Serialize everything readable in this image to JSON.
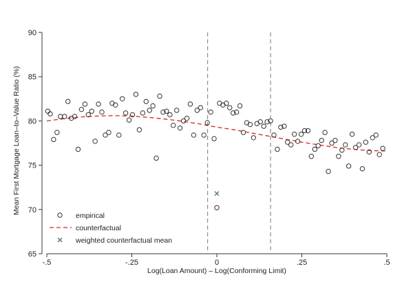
{
  "chart_data": {
    "type": "scatter",
    "title": "",
    "xlabel": "Log(Loan Amount) – Log(Conforming Limit)",
    "ylabel": "Mean First Mortgage Loan–to–Value Ratio (%)",
    "xlim": [
      -0.5,
      0.5
    ],
    "ylim": [
      65,
      90
    ],
    "x_ticks": [
      -0.5,
      -0.25,
      0,
      0.25,
      0.5
    ],
    "x_tick_labels": [
      "-.5",
      "-.25",
      "0",
      ".25",
      ".5"
    ],
    "y_ticks": [
      65,
      70,
      75,
      80,
      85,
      90
    ],
    "y_tick_labels": [
      "65",
      "70",
      "75",
      "80",
      "85",
      "90"
    ],
    "grid": false,
    "legend_position": "bottom-left",
    "vertical_reference_lines": [
      -0.027,
      0.158
    ],
    "series": [
      {
        "name": "empirical",
        "marker": "hollow-circle",
        "color": "#333333",
        "points": [
          [
            -0.497,
            81.1
          ],
          [
            -0.49,
            80.8
          ],
          [
            -0.48,
            77.9
          ],
          [
            -0.47,
            78.7
          ],
          [
            -0.46,
            80.5
          ],
          [
            -0.448,
            80.5
          ],
          [
            -0.438,
            82.2
          ],
          [
            -0.428,
            80.3
          ],
          [
            -0.418,
            80.5
          ],
          [
            -0.408,
            76.8
          ],
          [
            -0.398,
            81.3
          ],
          [
            -0.388,
            81.9
          ],
          [
            -0.378,
            80.7
          ],
          [
            -0.368,
            81.1
          ],
          [
            -0.358,
            77.7
          ],
          [
            -0.348,
            81.9
          ],
          [
            -0.338,
            81.0
          ],
          [
            -0.328,
            78.4
          ],
          [
            -0.318,
            78.7
          ],
          [
            -0.308,
            82.0
          ],
          [
            -0.298,
            81.8
          ],
          [
            -0.288,
            78.4
          ],
          [
            -0.278,
            82.5
          ],
          [
            -0.268,
            80.9
          ],
          [
            -0.258,
            80.1
          ],
          [
            -0.248,
            80.7
          ],
          [
            -0.238,
            83.0
          ],
          [
            -0.228,
            79.0
          ],
          [
            -0.218,
            80.9
          ],
          [
            -0.208,
            82.2
          ],
          [
            -0.198,
            81.2
          ],
          [
            -0.188,
            81.7
          ],
          [
            -0.178,
            75.8
          ],
          [
            -0.168,
            82.8
          ],
          [
            -0.158,
            81.0
          ],
          [
            -0.148,
            81.1
          ],
          [
            -0.138,
            80.7
          ],
          [
            -0.128,
            79.5
          ],
          [
            -0.118,
            81.2
          ],
          [
            -0.108,
            79.2
          ],
          [
            -0.098,
            80.0
          ],
          [
            -0.088,
            80.3
          ],
          [
            -0.078,
            81.9
          ],
          [
            -0.068,
            78.4
          ],
          [
            -0.058,
            81.2
          ],
          [
            -0.048,
            81.5
          ],
          [
            -0.038,
            78.4
          ],
          [
            -0.028,
            79.8
          ],
          [
            -0.018,
            81.0
          ],
          [
            -0.008,
            78.0
          ],
          [
            0.0,
            70.2
          ],
          [
            0.008,
            82.0
          ],
          [
            0.018,
            81.8
          ],
          [
            0.028,
            82.0
          ],
          [
            0.038,
            81.5
          ],
          [
            0.048,
            80.9
          ],
          [
            0.058,
            81.0
          ],
          [
            0.068,
            81.7
          ],
          [
            0.078,
            78.7
          ],
          [
            0.088,
            79.8
          ],
          [
            0.098,
            79.6
          ],
          [
            0.108,
            78.1
          ],
          [
            0.118,
            79.7
          ],
          [
            0.128,
            79.9
          ],
          [
            0.138,
            79.4
          ],
          [
            0.148,
            79.9
          ],
          [
            0.158,
            80.0
          ],
          [
            0.168,
            78.4
          ],
          [
            0.178,
            76.8
          ],
          [
            0.188,
            79.3
          ],
          [
            0.198,
            79.4
          ],
          [
            0.208,
            77.6
          ],
          [
            0.218,
            77.3
          ],
          [
            0.228,
            78.5
          ],
          [
            0.238,
            77.7
          ],
          [
            0.248,
            78.5
          ],
          [
            0.258,
            78.9
          ],
          [
            0.268,
            78.9
          ],
          [
            0.278,
            76.0
          ],
          [
            0.288,
            76.8
          ],
          [
            0.298,
            77.2
          ],
          [
            0.308,
            77.8
          ],
          [
            0.318,
            78.7
          ],
          [
            0.328,
            74.3
          ],
          [
            0.338,
            77.5
          ],
          [
            0.348,
            77.8
          ],
          [
            0.358,
            76.0
          ],
          [
            0.368,
            76.7
          ],
          [
            0.378,
            77.3
          ],
          [
            0.388,
            74.9
          ],
          [
            0.398,
            78.5
          ],
          [
            0.408,
            77.0
          ],
          [
            0.418,
            77.3
          ],
          [
            0.428,
            74.6
          ],
          [
            0.438,
            77.6
          ],
          [
            0.448,
            76.5
          ],
          [
            0.458,
            78.1
          ],
          [
            0.468,
            78.4
          ],
          [
            0.478,
            76.2
          ],
          [
            0.488,
            76.9
          ]
        ]
      },
      {
        "name": "counterfactual",
        "style": "dashed-line",
        "color": "#dd2222",
        "x": [
          -0.5,
          -0.45,
          -0.4,
          -0.35,
          -0.3,
          -0.25,
          -0.2,
          -0.15,
          -0.1,
          -0.05,
          0.0,
          0.05,
          0.1,
          0.15,
          0.2,
          0.25,
          0.3,
          0.35,
          0.4,
          0.45,
          0.5
        ],
        "y": [
          80.0,
          80.25,
          80.45,
          80.55,
          80.6,
          80.55,
          80.4,
          80.2,
          79.95,
          79.65,
          79.3,
          79.0,
          78.65,
          78.3,
          77.95,
          77.6,
          77.3,
          77.0,
          76.8,
          76.65,
          76.6
        ]
      },
      {
        "name": "weighted counterfactual mean",
        "marker": "x",
        "color": "#4d6f84",
        "points": [
          [
            0.0,
            71.8
          ]
        ]
      }
    ]
  }
}
